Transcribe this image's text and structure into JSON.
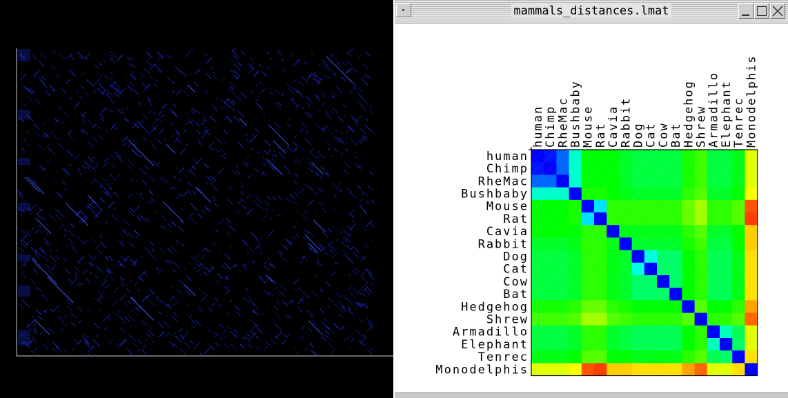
{
  "window": {
    "title": "mammals_distances.lmat"
  },
  "dot_plot": {
    "background": "#000000",
    "dot_color": "#2236ff",
    "frame_color": "#cfcfcf"
  },
  "heatmap": {
    "labels": [
      "human",
      "Chimp",
      "RheMac",
      "Bushbaby",
      "Mouse",
      "Rat",
      "Cavia",
      "Rabbit",
      "Dog",
      "Cat",
      "Cow",
      "Bat",
      "Hedgehog",
      "Shrew",
      "Armadillo",
      "Elephant",
      "Tenrec",
      "Monodelphis"
    ],
    "colorscale": [
      "#0000ff",
      "#00ffff",
      "#00ff00",
      "#ffff00",
      "#ff0000"
    ],
    "distance_levels": [
      [
        0.0,
        0.02,
        0.1,
        0.3,
        0.5,
        0.5,
        0.5,
        0.46,
        0.44,
        0.44,
        0.44,
        0.44,
        0.52,
        0.56,
        0.44,
        0.44,
        0.48,
        0.72
      ],
      [
        0.02,
        0.0,
        0.1,
        0.3,
        0.5,
        0.5,
        0.5,
        0.46,
        0.44,
        0.44,
        0.44,
        0.44,
        0.52,
        0.56,
        0.44,
        0.44,
        0.48,
        0.72
      ],
      [
        0.1,
        0.1,
        0.0,
        0.3,
        0.5,
        0.5,
        0.5,
        0.46,
        0.44,
        0.44,
        0.44,
        0.44,
        0.52,
        0.56,
        0.44,
        0.44,
        0.48,
        0.72
      ],
      [
        0.3,
        0.3,
        0.3,
        0.0,
        0.52,
        0.52,
        0.5,
        0.48,
        0.46,
        0.46,
        0.46,
        0.46,
        0.54,
        0.58,
        0.46,
        0.46,
        0.5,
        0.74
      ],
      [
        0.5,
        0.5,
        0.5,
        0.52,
        0.0,
        0.22,
        0.54,
        0.54,
        0.54,
        0.54,
        0.54,
        0.54,
        0.6,
        0.66,
        0.54,
        0.54,
        0.58,
        0.92
      ],
      [
        0.5,
        0.5,
        0.5,
        0.52,
        0.22,
        0.0,
        0.54,
        0.54,
        0.54,
        0.54,
        0.54,
        0.54,
        0.6,
        0.66,
        0.54,
        0.54,
        0.58,
        0.94
      ],
      [
        0.5,
        0.5,
        0.5,
        0.5,
        0.54,
        0.54,
        0.0,
        0.48,
        0.48,
        0.48,
        0.48,
        0.48,
        0.54,
        0.58,
        0.46,
        0.46,
        0.5,
        0.8
      ],
      [
        0.46,
        0.46,
        0.46,
        0.48,
        0.54,
        0.54,
        0.48,
        0.0,
        0.46,
        0.46,
        0.46,
        0.46,
        0.52,
        0.56,
        0.44,
        0.44,
        0.5,
        0.8
      ],
      [
        0.44,
        0.44,
        0.44,
        0.46,
        0.54,
        0.54,
        0.48,
        0.46,
        0.0,
        0.28,
        0.4,
        0.4,
        0.5,
        0.54,
        0.42,
        0.42,
        0.48,
        0.78
      ],
      [
        0.44,
        0.44,
        0.44,
        0.46,
        0.54,
        0.54,
        0.48,
        0.46,
        0.28,
        0.0,
        0.4,
        0.4,
        0.5,
        0.54,
        0.42,
        0.42,
        0.48,
        0.78
      ],
      [
        0.44,
        0.44,
        0.44,
        0.46,
        0.54,
        0.54,
        0.48,
        0.46,
        0.4,
        0.4,
        0.0,
        0.4,
        0.5,
        0.54,
        0.42,
        0.42,
        0.48,
        0.78
      ],
      [
        0.44,
        0.44,
        0.44,
        0.46,
        0.54,
        0.54,
        0.48,
        0.46,
        0.4,
        0.4,
        0.4,
        0.0,
        0.5,
        0.54,
        0.42,
        0.42,
        0.48,
        0.78
      ],
      [
        0.52,
        0.52,
        0.52,
        0.54,
        0.6,
        0.6,
        0.54,
        0.52,
        0.5,
        0.5,
        0.5,
        0.5,
        0.0,
        0.58,
        0.5,
        0.5,
        0.54,
        0.84
      ],
      [
        0.56,
        0.56,
        0.56,
        0.58,
        0.66,
        0.66,
        0.58,
        0.56,
        0.54,
        0.54,
        0.54,
        0.54,
        0.58,
        0.0,
        0.54,
        0.54,
        0.58,
        0.9
      ],
      [
        0.44,
        0.44,
        0.44,
        0.46,
        0.54,
        0.54,
        0.46,
        0.44,
        0.42,
        0.42,
        0.42,
        0.42,
        0.5,
        0.54,
        0.0,
        0.32,
        0.42,
        0.72
      ],
      [
        0.44,
        0.44,
        0.44,
        0.46,
        0.54,
        0.54,
        0.46,
        0.44,
        0.42,
        0.42,
        0.42,
        0.42,
        0.5,
        0.54,
        0.32,
        0.0,
        0.4,
        0.72
      ],
      [
        0.48,
        0.48,
        0.48,
        0.5,
        0.58,
        0.58,
        0.5,
        0.5,
        0.48,
        0.48,
        0.48,
        0.48,
        0.54,
        0.58,
        0.42,
        0.4,
        0.0,
        0.78
      ],
      [
        0.72,
        0.72,
        0.72,
        0.74,
        0.92,
        0.94,
        0.8,
        0.8,
        0.78,
        0.78,
        0.78,
        0.78,
        0.84,
        0.9,
        0.72,
        0.72,
        0.78,
        0.0
      ]
    ]
  }
}
